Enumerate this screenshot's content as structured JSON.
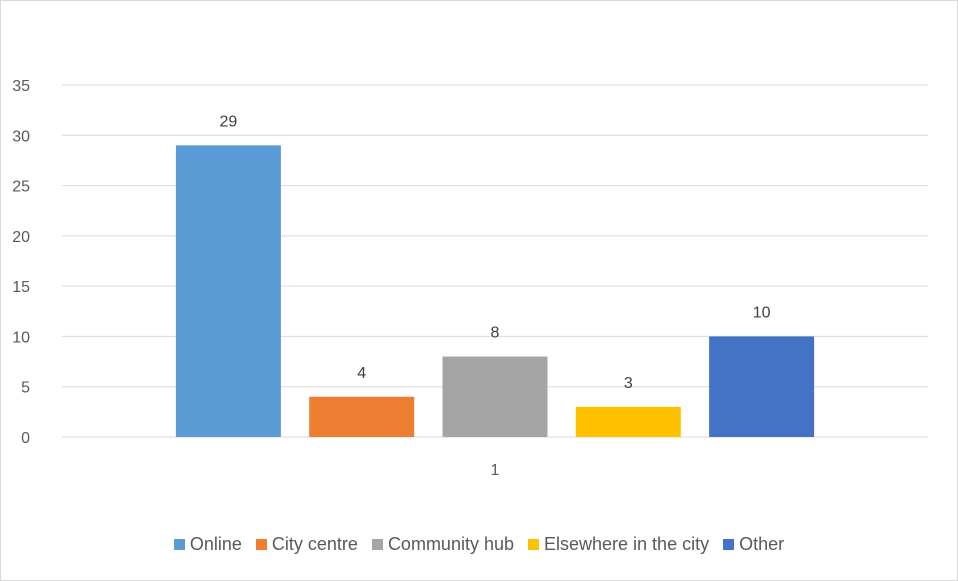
{
  "chart_data": {
    "type": "bar",
    "categories": [
      "1"
    ],
    "series": [
      {
        "name": "Online",
        "values": [
          29
        ],
        "color": "#5b9bd5"
      },
      {
        "name": "City centre",
        "values": [
          4
        ],
        "color": "#ed7d31"
      },
      {
        "name": "Community hub",
        "values": [
          8
        ],
        "color": "#a5a5a5"
      },
      {
        "name": "Elsewhere in the city",
        "values": [
          3
        ],
        "color": "#ffc000"
      },
      {
        "name": "Other",
        "values": [
          10
        ],
        "color": "#4472c4"
      }
    ],
    "title": "",
    "xlabel": "",
    "ylabel": "",
    "ylim": [
      0,
      35
    ],
    "yticks": [
      0,
      5,
      10,
      15,
      20,
      25,
      30,
      35
    ],
    "grid": true,
    "legend_position": "bottom",
    "data_labels": true
  }
}
